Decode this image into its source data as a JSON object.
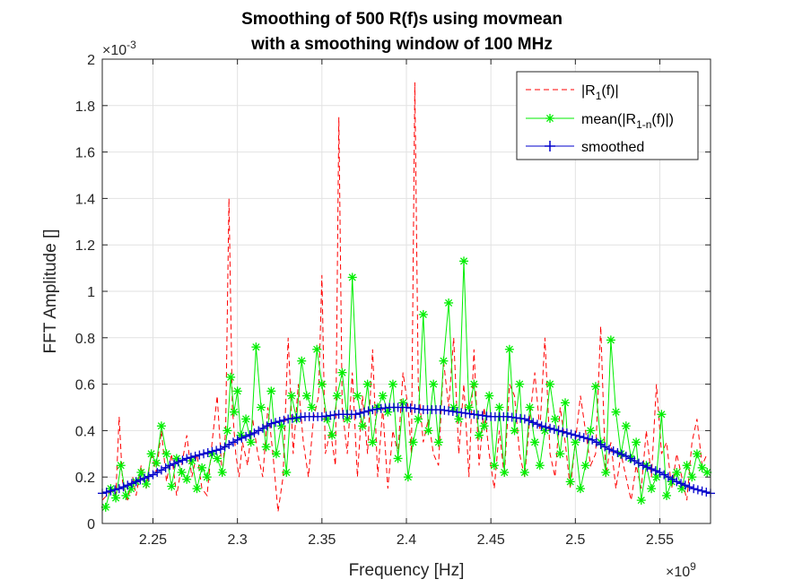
{
  "chart_data": {
    "type": "line",
    "title": [
      "Smoothing of 500 R(f)s using movmean",
      "with a smoothing window of 100 MHz"
    ],
    "xlabel": "Frequency [Hz]",
    "ylabel": "FFT Amplitude []",
    "x_exponent": {
      "base": "×10",
      "exp": "9"
    },
    "y_exponent": {
      "base": "×10",
      "exp": "-3"
    },
    "xlim": [
      2.22,
      2.58
    ],
    "ylim": [
      0,
      2
    ],
    "xticks": [
      2.25,
      2.3,
      2.35,
      2.4,
      2.45,
      2.5,
      2.55
    ],
    "yticks": [
      0,
      0.2,
      0.4,
      0.6,
      0.8,
      1,
      1.2,
      1.4,
      1.6,
      1.8,
      2
    ],
    "xtick_labels": [
      "2.25",
      "2.3",
      "2.35",
      "2.4",
      "2.45",
      "2.5",
      "2.55"
    ],
    "ytick_labels": [
      "0",
      "0.2",
      "0.4",
      "0.6",
      "0.8",
      "1",
      "1.2",
      "1.4",
      "1.6",
      "1.8",
      "2"
    ],
    "grid": true,
    "legend_position": "top-right",
    "legend": [
      {
        "main": "|R",
        "sub": "1",
        "tail": "(f)|"
      },
      {
        "main": "mean(|R",
        "sub": "1-n",
        "tail": "(f)|)"
      },
      {
        "main": "smoothed",
        "sub": "",
        "tail": ""
      }
    ],
    "series": [
      {
        "style": "dashed",
        "color": "#ff0000",
        "marker": "none",
        "x": [
          2.22,
          2.225,
          2.228,
          2.23,
          2.232,
          2.235,
          2.238,
          2.24,
          2.243,
          2.246,
          2.249,
          2.252,
          2.255,
          2.258,
          2.261,
          2.264,
          2.267,
          2.27,
          2.273,
          2.276,
          2.279,
          2.282,
          2.285,
          2.288,
          2.291,
          2.293,
          2.295,
          2.297,
          2.299,
          2.301,
          2.303,
          2.306,
          2.309,
          2.312,
          2.315,
          2.318,
          2.321,
          2.324,
          2.327,
          2.33,
          2.333,
          2.336,
          2.339,
          2.342,
          2.345,
          2.348,
          2.35,
          2.352,
          2.355,
          2.358,
          2.36,
          2.362,
          2.365,
          2.368,
          2.371,
          2.374,
          2.377,
          2.38,
          2.383,
          2.386,
          2.389,
          2.392,
          2.395,
          2.398,
          2.401,
          2.403,
          2.405,
          2.407,
          2.41,
          2.413,
          2.416,
          2.419,
          2.422,
          2.425,
          2.428,
          2.431,
          2.434,
          2.437,
          2.44,
          2.443,
          2.446,
          2.449,
          2.452,
          2.455,
          2.458,
          2.461,
          2.464,
          2.467,
          2.47,
          2.473,
          2.476,
          2.479,
          2.482,
          2.485,
          2.488,
          2.491,
          2.494,
          2.497,
          2.5,
          2.503,
          2.506,
          2.509,
          2.512,
          2.515,
          2.518,
          2.521,
          2.524,
          2.527,
          2.53,
          2.533,
          2.536,
          2.539,
          2.542,
          2.545,
          2.548,
          2.551,
          2.554,
          2.557,
          2.56,
          2.563,
          2.566,
          2.569,
          2.572,
          2.575,
          2.578
        ],
        "y": [
          0.1,
          0.14,
          0.12,
          0.46,
          0.18,
          0.1,
          0.2,
          0.12,
          0.25,
          0.15,
          0.3,
          0.22,
          0.4,
          0.18,
          0.3,
          0.12,
          0.25,
          0.38,
          0.2,
          0.3,
          0.15,
          0.12,
          0.35,
          0.55,
          0.2,
          0.4,
          1.4,
          0.5,
          0.3,
          0.2,
          0.35,
          0.25,
          0.45,
          0.3,
          0.2,
          0.5,
          0.3,
          0.05,
          0.2,
          0.8,
          0.3,
          0.6,
          0.35,
          0.2,
          0.45,
          0.55,
          1.07,
          0.3,
          0.4,
          0.25,
          1.75,
          0.5,
          0.3,
          0.65,
          0.2,
          0.55,
          0.3,
          0.75,
          0.2,
          0.5,
          0.15,
          0.4,
          0.3,
          0.65,
          0.5,
          0.3,
          1.9,
          0.6,
          0.35,
          0.45,
          0.3,
          0.25,
          0.7,
          0.5,
          0.8,
          0.3,
          0.6,
          0.2,
          0.75,
          0.25,
          0.5,
          0.3,
          0.15,
          0.4,
          0.2,
          0.6,
          0.55,
          0.3,
          0.2,
          0.45,
          0.65,
          0.4,
          0.8,
          0.3,
          0.2,
          0.5,
          0.35,
          0.15,
          0.35,
          0.55,
          0.4,
          0.25,
          0.3,
          0.85,
          0.2,
          0.35,
          0.15,
          0.3,
          0.2,
          0.1,
          0.25,
          0.15,
          0.4,
          0.2,
          0.6,
          0.3,
          0.35,
          0.15,
          0.3,
          0.2,
          0.1,
          0.35,
          0.45,
          0.25,
          0.3
        ]
      },
      {
        "style": "solid",
        "color": "#00ee00",
        "marker": "asterisk",
        "x": [
          2.222,
          2.225,
          2.228,
          2.231,
          2.234,
          2.237,
          2.24,
          2.243,
          2.246,
          2.249,
          2.252,
          2.255,
          2.258,
          2.261,
          2.264,
          2.267,
          2.27,
          2.273,
          2.276,
          2.279,
          2.282,
          2.285,
          2.288,
          2.291,
          2.294,
          2.296,
          2.298,
          2.3,
          2.302,
          2.305,
          2.308,
          2.311,
          2.314,
          2.317,
          2.32,
          2.323,
          2.326,
          2.329,
          2.332,
          2.335,
          2.338,
          2.341,
          2.344,
          2.347,
          2.35,
          2.353,
          2.356,
          2.359,
          2.362,
          2.365,
          2.368,
          2.371,
          2.374,
          2.377,
          2.38,
          2.383,
          2.386,
          2.389,
          2.392,
          2.395,
          2.398,
          2.401,
          2.404,
          2.407,
          2.41,
          2.413,
          2.416,
          2.419,
          2.422,
          2.425,
          2.428,
          2.431,
          2.434,
          2.437,
          2.44,
          2.443,
          2.446,
          2.449,
          2.452,
          2.455,
          2.458,
          2.461,
          2.464,
          2.467,
          2.47,
          2.473,
          2.476,
          2.479,
          2.482,
          2.485,
          2.488,
          2.491,
          2.494,
          2.497,
          2.5,
          2.503,
          2.506,
          2.509,
          2.512,
          2.515,
          2.518,
          2.521,
          2.524,
          2.527,
          2.53,
          2.533,
          2.536,
          2.539,
          2.542,
          2.545,
          2.548,
          2.551,
          2.554,
          2.557,
          2.56,
          2.563,
          2.566,
          2.569,
          2.572,
          2.575,
          2.578
        ],
        "y": [
          0.07,
          0.15,
          0.11,
          0.25,
          0.12,
          0.15,
          0.18,
          0.22,
          0.17,
          0.3,
          0.26,
          0.42,
          0.3,
          0.16,
          0.28,
          0.22,
          0.19,
          0.27,
          0.15,
          0.24,
          0.2,
          0.3,
          0.28,
          0.22,
          0.4,
          0.63,
          0.48,
          0.57,
          0.38,
          0.45,
          0.35,
          0.76,
          0.5,
          0.33,
          0.57,
          0.3,
          0.42,
          0.22,
          0.55,
          0.45,
          0.7,
          0.55,
          0.5,
          0.75,
          0.6,
          0.45,
          0.38,
          0.55,
          0.65,
          0.45,
          1.06,
          0.55,
          0.42,
          0.6,
          0.35,
          0.5,
          0.55,
          0.48,
          0.6,
          0.28,
          0.52,
          0.2,
          0.35,
          0.45,
          0.9,
          0.4,
          0.6,
          0.35,
          0.7,
          0.95,
          0.5,
          0.45,
          1.13,
          0.5,
          0.6,
          0.38,
          0.42,
          0.55,
          0.25,
          0.5,
          0.22,
          0.75,
          0.4,
          0.6,
          0.22,
          0.5,
          0.35,
          0.25,
          0.4,
          0.6,
          0.45,
          0.3,
          0.52,
          0.18,
          0.35,
          0.15,
          0.25,
          0.4,
          0.59,
          0.35,
          0.22,
          0.79,
          0.48,
          0.3,
          0.42,
          0.28,
          0.35,
          0.1,
          0.25,
          0.15,
          0.2,
          0.47,
          0.12,
          0.18,
          0.22,
          0.15,
          0.25,
          0.2,
          0.3,
          0.24,
          0.22
        ]
      },
      {
        "style": "solid",
        "color": "#0000cc",
        "marker": "plus",
        "x": [
          2.22,
          2.23,
          2.24,
          2.25,
          2.26,
          2.27,
          2.28,
          2.29,
          2.3,
          2.31,
          2.32,
          2.33,
          2.34,
          2.35,
          2.36,
          2.37,
          2.38,
          2.39,
          2.4,
          2.41,
          2.42,
          2.43,
          2.44,
          2.45,
          2.46,
          2.47,
          2.48,
          2.49,
          2.5,
          2.51,
          2.52,
          2.53,
          2.54,
          2.55,
          2.56,
          2.57,
          2.58
        ],
        "y": [
          0.13,
          0.15,
          0.18,
          0.21,
          0.25,
          0.28,
          0.3,
          0.32,
          0.36,
          0.39,
          0.43,
          0.45,
          0.46,
          0.46,
          0.47,
          0.47,
          0.49,
          0.5,
          0.5,
          0.49,
          0.49,
          0.48,
          0.47,
          0.46,
          0.46,
          0.45,
          0.42,
          0.4,
          0.38,
          0.36,
          0.32,
          0.29,
          0.25,
          0.22,
          0.18,
          0.15,
          0.13
        ]
      }
    ]
  }
}
